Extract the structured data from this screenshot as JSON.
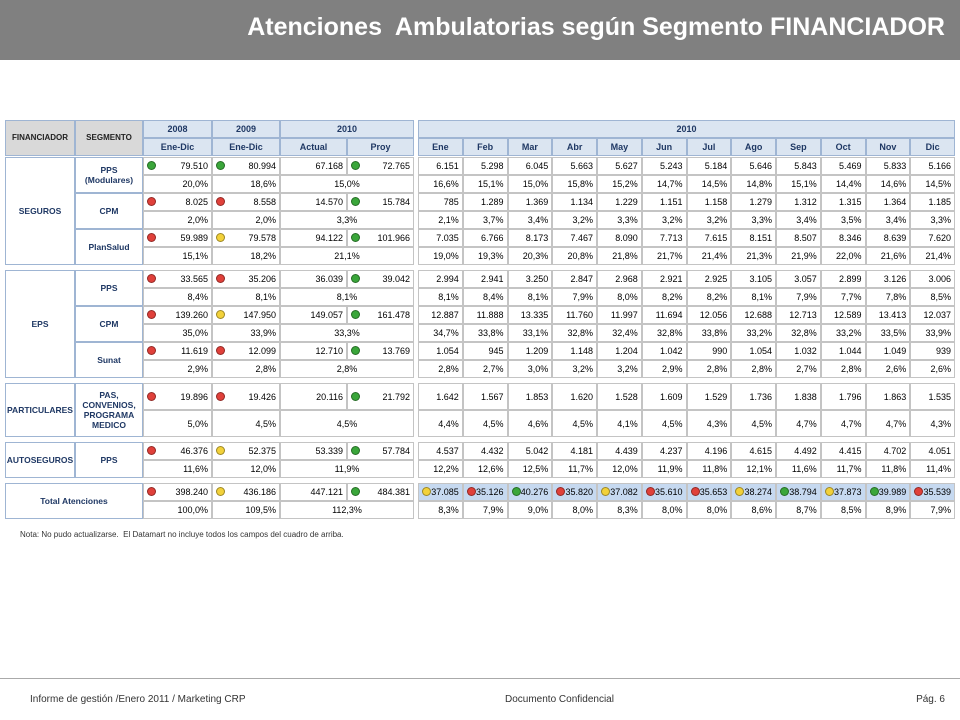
{
  "header": {
    "title": "Atenciones  Ambulatorias según Segmento FINANCIADOR"
  },
  "table": {
    "header_row1": [
      "FINANCIADOR",
      "SEGMENTO",
      "2008",
      "2009",
      "2010",
      "2010"
    ],
    "header_row2": [
      "Ene-Dic",
      "Ene-Dic",
      "Actual",
      "Proy",
      "Ene",
      "Feb",
      "Mar",
      "Abr",
      "May",
      "Jun",
      "Jul",
      "Ago",
      "Sep",
      "Oct",
      "Nov",
      "Dic"
    ],
    "groups": [
      {
        "name": "SEGUROS",
        "segments": [
          {
            "name": "PPS (Modulares)",
            "values": [
              {
                "text": "79.510",
                "dot": "#3aa63a"
              },
              {
                "text": "80.994",
                "dot": "#3aa63a"
              },
              {
                "text": "67.168"
              },
              {
                "text": "72.765",
                "dot": "#3aa63a"
              },
              {
                "text": "6.151"
              },
              {
                "text": "5.298"
              },
              {
                "text": "6.045"
              },
              {
                "text": "5.663"
              },
              {
                "text": "5.627"
              },
              {
                "text": "5.243"
              },
              {
                "text": "5.184"
              },
              {
                "text": "5.646"
              },
              {
                "text": "5.843"
              },
              {
                "text": "5.469"
              },
              {
                "text": "5.833"
              },
              {
                "text": "5.166"
              }
            ],
            "shares": [
              "20,0%",
              "18,6%",
              "15,0%",
              "16,6%",
              "15,1%",
              "15,0%",
              "15,8%",
              "15,2%",
              "14,7%",
              "14,5%",
              "14,8%",
              "15,1%",
              "14,4%",
              "14,6%",
              "14,5%"
            ]
          },
          {
            "name": "CPM",
            "values": [
              {
                "text": "8.025",
                "dot": "#e0403a"
              },
              {
                "text": "8.558",
                "dot": "#e0403a"
              },
              {
                "text": "14.570"
              },
              {
                "text": "15.784",
                "dot": "#3aa63a"
              },
              {
                "text": "785"
              },
              {
                "text": "1.289"
              },
              {
                "text": "1.369"
              },
              {
                "text": "1.134"
              },
              {
                "text": "1.229"
              },
              {
                "text": "1.151"
              },
              {
                "text": "1.158"
              },
              {
                "text": "1.279"
              },
              {
                "text": "1.312"
              },
              {
                "text": "1.315"
              },
              {
                "text": "1.364"
              },
              {
                "text": "1.185"
              }
            ],
            "shares": [
              "2,0%",
              "2,0%",
              "3,3%",
              "2,1%",
              "3,7%",
              "3,4%",
              "3,2%",
              "3,3%",
              "3,2%",
              "3,2%",
              "3,3%",
              "3,4%",
              "3,5%",
              "3,4%",
              "3,3%"
            ]
          },
          {
            "name": "PlanSalud",
            "values": [
              {
                "text": "59.989",
                "dot": "#e0403a"
              },
              {
                "text": "79.578",
                "dot": "#f2d13a"
              },
              {
                "text": "94.122"
              },
              {
                "text": "101.966",
                "dot": "#3aa63a"
              },
              {
                "text": "7.035"
              },
              {
                "text": "6.766"
              },
              {
                "text": "8.173"
              },
              {
                "text": "7.467"
              },
              {
                "text": "8.090"
              },
              {
                "text": "7.713"
              },
              {
                "text": "7.615"
              },
              {
                "text": "8.151"
              },
              {
                "text": "8.507"
              },
              {
                "text": "8.346"
              },
              {
                "text": "8.639"
              },
              {
                "text": "7.620"
              }
            ],
            "shares": [
              "15,1%",
              "18,2%",
              "21,1%",
              "19,0%",
              "19,3%",
              "20,3%",
              "20,8%",
              "21,8%",
              "21,7%",
              "21,4%",
              "21,3%",
              "21,9%",
              "22,0%",
              "21,6%",
              "21,4%"
            ]
          }
        ]
      },
      {
        "name": "EPS",
        "segments": [
          {
            "name": "PPS",
            "values": [
              {
                "text": "33.565",
                "dot": "#e0403a"
              },
              {
                "text": "35.206",
                "dot": "#e0403a"
              },
              {
                "text": "36.039"
              },
              {
                "text": "39.042",
                "dot": "#3aa63a"
              },
              {
                "text": "2.994"
              },
              {
                "text": "2.941"
              },
              {
                "text": "3.250"
              },
              {
                "text": "2.847"
              },
              {
                "text": "2.968"
              },
              {
                "text": "2.921"
              },
              {
                "text": "2.925"
              },
              {
                "text": "3.105"
              },
              {
                "text": "3.057"
              },
              {
                "text": "2.899"
              },
              {
                "text": "3.126"
              },
              {
                "text": "3.006"
              }
            ],
            "shares": [
              "8,4%",
              "8,1%",
              "8,1%",
              "8,1%",
              "8,4%",
              "8,1%",
              "7,9%",
              "8,0%",
              "8,2%",
              "8,2%",
              "8,1%",
              "7,9%",
              "7,7%",
              "7,8%",
              "8,5%"
            ]
          },
          {
            "name": "CPM",
            "values": [
              {
                "text": "139.260",
                "dot": "#e0403a"
              },
              {
                "text": "147.950",
                "dot": "#f2d13a"
              },
              {
                "text": "149.057"
              },
              {
                "text": "161.478",
                "dot": "#3aa63a"
              },
              {
                "text": "12.887"
              },
              {
                "text": "11.888"
              },
              {
                "text": "13.335"
              },
              {
                "text": "11.760"
              },
              {
                "text": "11.997"
              },
              {
                "text": "11.694"
              },
              {
                "text": "12.056"
              },
              {
                "text": "12.688"
              },
              {
                "text": "12.713"
              },
              {
                "text": "12.589"
              },
              {
                "text": "13.413"
              },
              {
                "text": "12.037"
              }
            ],
            "shares": [
              "35,0%",
              "33,9%",
              "33,3%",
              "34,7%",
              "33,8%",
              "33,1%",
              "32,8%",
              "32,4%",
              "32,8%",
              "33,8%",
              "33,2%",
              "32,8%",
              "33,2%",
              "33,5%",
              "33,9%"
            ]
          },
          {
            "name": "Sunat",
            "values": [
              {
                "text": "11.619",
                "dot": "#e0403a"
              },
              {
                "text": "12.099",
                "dot": "#e0403a"
              },
              {
                "text": "12.710"
              },
              {
                "text": "13.769",
                "dot": "#3aa63a"
              },
              {
                "text": "1.054"
              },
              {
                "text": "945"
              },
              {
                "text": "1.209"
              },
              {
                "text": "1.148"
              },
              {
                "text": "1.204"
              },
              {
                "text": "1.042"
              },
              {
                "text": "990"
              },
              {
                "text": "1.054"
              },
              {
                "text": "1.032"
              },
              {
                "text": "1.044"
              },
              {
                "text": "1.049"
              },
              {
                "text": "939"
              }
            ],
            "shares": [
              "2,9%",
              "2,8%",
              "2,8%",
              "2,8%",
              "2,7%",
              "3,0%",
              "3,2%",
              "3,2%",
              "2,9%",
              "2,8%",
              "2,8%",
              "2,7%",
              "2,8%",
              "2,6%",
              "2,6%"
            ]
          }
        ]
      },
      {
        "name": "PARTICULARES",
        "segments": [
          {
            "name": "PAS, CONVENIOS, PROGRAMA MEDICO",
            "values": [
              {
                "text": "19.896",
                "dot": "#e0403a"
              },
              {
                "text": "19.426",
                "dot": "#e0403a"
              },
              {
                "text": "20.116"
              },
              {
                "text": "21.792",
                "dot": "#3aa63a"
              },
              {
                "text": "1.642"
              },
              {
                "text": "1.567"
              },
              {
                "text": "1.853"
              },
              {
                "text": "1.620"
              },
              {
                "text": "1.528"
              },
              {
                "text": "1.609"
              },
              {
                "text": "1.529"
              },
              {
                "text": "1.736"
              },
              {
                "text": "1.838"
              },
              {
                "text": "1.796"
              },
              {
                "text": "1.863"
              },
              {
                "text": "1.535"
              }
            ],
            "shares": [
              "5,0%",
              "4,5%",
              "4,5%",
              "4,4%",
              "4,5%",
              "4,6%",
              "4,5%",
              "4,1%",
              "4,5%",
              "4,3%",
              "4,5%",
              "4,7%",
              "4,7%",
              "4,7%",
              "4,3%"
            ]
          }
        ]
      },
      {
        "name": "AUTOSEGUROS",
        "segments": [
          {
            "name": "PPS",
            "values": [
              {
                "text": "46.376",
                "dot": "#e0403a"
              },
              {
                "text": "52.375",
                "dot": "#f2d13a"
              },
              {
                "text": "53.339"
              },
              {
                "text": "57.784",
                "dot": "#3aa63a"
              },
              {
                "text": "4.537"
              },
              {
                "text": "4.432"
              },
              {
                "text": "5.042"
              },
              {
                "text": "4.181"
              },
              {
                "text": "4.439"
              },
              {
                "text": "4.237"
              },
              {
                "text": "4.196"
              },
              {
                "text": "4.615"
              },
              {
                "text": "4.492"
              },
              {
                "text": "4.415"
              },
              {
                "text": "4.702"
              },
              {
                "text": "4.051"
              }
            ],
            "shares": [
              "11,6%",
              "12,0%",
              "11,9%",
              "12,2%",
              "12,6%",
              "12,5%",
              "11,7%",
              "12,0%",
              "11,9%",
              "11,8%",
              "12,1%",
              "11,6%",
              "11,7%",
              "11,8%",
              "11,4%"
            ]
          }
        ]
      }
    ],
    "total": {
      "label": "Total Atenciones",
      "values": [
        {
          "text": "398.240",
          "dot": "#e0403a"
        },
        {
          "text": "436.186",
          "dot": "#f2d13a"
        },
        {
          "text": "447.121"
        },
        {
          "text": "484.381",
          "dot": "#3aa63a"
        },
        {
          "text": "37.085",
          "dot": "#f2d13a"
        },
        {
          "text": "35.126",
          "dot": "#e0403a"
        },
        {
          "text": "40.276",
          "dot": "#3aa63a"
        },
        {
          "text": "35.820",
          "dot": "#e0403a"
        },
        {
          "text": "37.082",
          "dot": "#f2d13a"
        },
        {
          "text": "35.610",
          "dot": "#e0403a"
        },
        {
          "text": "35.653",
          "dot": "#e0403a"
        },
        {
          "text": "38.274",
          "dot": "#f2d13a"
        },
        {
          "text": "38.794",
          "dot": "#3aa63a"
        },
        {
          "text": "37.873",
          "dot": "#f2d13a"
        },
        {
          "text": "39.989",
          "dot": "#3aa63a"
        },
        {
          "text": "35.539",
          "dot": "#e0403a"
        }
      ],
      "shares": [
        "100,0%",
        "109,5%",
        "112,3%",
        "8,3%",
        "7,9%",
        "9,0%",
        "8,0%",
        "8,3%",
        "8,0%",
        "8,0%",
        "8,6%",
        "8,7%",
        "8,5%",
        "8,9%",
        "7,9%"
      ]
    }
  },
  "note": "Nota: No pudo actualizarse.  El Datamart no incluye todos los campos del cuadro de arriba.",
  "footer": {
    "left": "Informe de gestión /Enero 2011 / Marketing CRP",
    "center": "Documento Confidencial",
    "right": "Pág. 6"
  }
}
